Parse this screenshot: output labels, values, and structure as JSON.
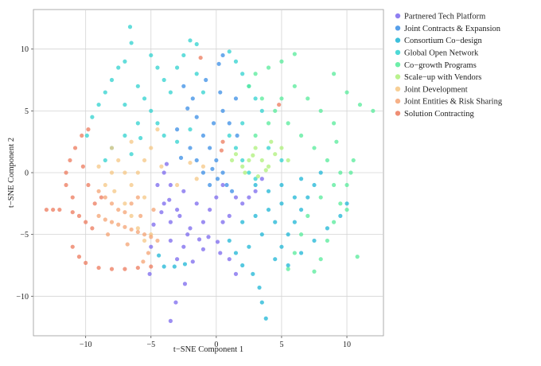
{
  "chart_data": {
    "type": "scatter",
    "title": "",
    "xlabel": "t−SNE Component 1",
    "ylabel": "t−SNE Component 2",
    "xlim": [
      -14,
      12.8
    ],
    "ylim": [
      -13.2,
      13.2
    ],
    "xticks": [
      -10,
      -5,
      0,
      5,
      10
    ],
    "yticks": [
      -10,
      -5,
      0,
      5,
      10
    ],
    "xtick_labels": [
      "−10",
      "−5",
      "0",
      "5",
      "10"
    ],
    "ytick_labels": [
      "−10",
      "−5",
      "0",
      "5",
      "10"
    ],
    "grid": true,
    "legend_position": "right-top",
    "series": [
      {
        "name": "Partnered Tech Platform",
        "color": "#7b68ee",
        "points": [
          [
            -5,
            -6
          ],
          [
            -3.5,
            -12
          ],
          [
            -3.1,
            -10.5
          ],
          [
            -2.4,
            -9
          ],
          [
            -1.8,
            -7.2
          ],
          [
            -1.3,
            -5.4
          ],
          [
            -0.6,
            -5.2
          ],
          [
            0.1,
            -5.6
          ],
          [
            -3.5,
            -4
          ],
          [
            -3,
            -3
          ],
          [
            -2.5,
            -1.5
          ],
          [
            -4,
            -2.5
          ],
          [
            -4.8,
            -4.2
          ],
          [
            -5.1,
            -8.2
          ],
          [
            -3.5,
            -1
          ],
          [
            -2.8,
            -3.5
          ],
          [
            -2,
            -4.5
          ],
          [
            -1.5,
            -2.5
          ],
          [
            -1,
            -4
          ],
          [
            -0.5,
            -3
          ],
          [
            0,
            -2
          ],
          [
            0.5,
            -1
          ],
          [
            0.5,
            -4
          ],
          [
            1,
            -3.5
          ],
          [
            1.5,
            -2
          ],
          [
            2,
            -2.5
          ],
          [
            2.5,
            -2
          ],
          [
            3,
            -1.5
          ],
          [
            3.5,
            -0.5
          ],
          [
            -4.5,
            -1
          ],
          [
            -4,
            0
          ],
          [
            -3.8,
            0.7
          ],
          [
            -3.5,
            -5.5
          ],
          [
            -2.5,
            -6
          ],
          [
            -1,
            -6.2
          ],
          [
            1,
            -7
          ],
          [
            1.5,
            -8.2
          ],
          [
            -3,
            -7
          ],
          [
            -2.2,
            -5
          ],
          [
            0.3,
            -6.5
          ],
          [
            -4.2,
            -3.2
          ],
          [
            -3.6,
            -2.2
          ]
        ]
      },
      {
        "name": "Joint Contracts & Expansion",
        "color": "#3a8ee6",
        "points": [
          [
            -2.2,
            5.2
          ],
          [
            -1.5,
            4.5
          ],
          [
            -1,
            3
          ],
          [
            -0.5,
            2
          ],
          [
            0,
            1
          ],
          [
            0.5,
            0
          ],
          [
            0.8,
            -1
          ],
          [
            1.2,
            -1.5
          ],
          [
            -0.2,
            4
          ],
          [
            0.5,
            5
          ],
          [
            1.5,
            6
          ],
          [
            0.2,
            8.8
          ],
          [
            0.5,
            9.5
          ],
          [
            -3,
            3.5
          ],
          [
            -2,
            2
          ],
          [
            -1.5,
            1
          ],
          [
            -1,
            0
          ],
          [
            -0.5,
            -1
          ],
          [
            0.1,
            -0.5
          ],
          [
            -1.8,
            6
          ],
          [
            -2.5,
            7
          ],
          [
            -0.8,
            7.5
          ],
          [
            0.3,
            6.5
          ],
          [
            1,
            4
          ],
          [
            1.6,
            3
          ],
          [
            -0.3,
            0.3
          ],
          [
            -2.7,
            1.2
          ]
        ]
      },
      {
        "name": "Consortium Co−design",
        "color": "#1cb5d6",
        "points": [
          [
            3.8,
            -11.8
          ],
          [
            3.5,
            -10.5
          ],
          [
            3.3,
            -9.3
          ],
          [
            2.8,
            -8.2
          ],
          [
            2,
            -7.5
          ],
          [
            1.5,
            -6.5
          ],
          [
            1,
            -5.5
          ],
          [
            4.5,
            -7
          ],
          [
            5,
            -6
          ],
          [
            5.5,
            -5
          ],
          [
            6,
            -4
          ],
          [
            6.5,
            -3
          ],
          [
            7,
            -2
          ],
          [
            7.5,
            -1
          ],
          [
            8,
            0
          ],
          [
            2,
            -4
          ],
          [
            3,
            -3.5
          ],
          [
            4,
            -3
          ],
          [
            5,
            -2.5
          ],
          [
            6,
            -2
          ],
          [
            2.5,
            -6
          ],
          [
            3.5,
            -5
          ],
          [
            4.5,
            -4
          ],
          [
            5.5,
            -7.5
          ],
          [
            6.5,
            -6.5
          ],
          [
            7.5,
            -5.5
          ],
          [
            8.5,
            -4.5
          ],
          [
            9.5,
            -3.5
          ],
          [
            10,
            -2.5
          ],
          [
            -4,
            -7.6
          ],
          [
            -3.2,
            -7.6
          ],
          [
            -2.4,
            -7.4
          ],
          [
            -4.4,
            -6.7
          ],
          [
            3,
            -1
          ],
          [
            4,
            -1.5
          ],
          [
            5,
            -1
          ],
          [
            6.5,
            -0.5
          ]
        ]
      },
      {
        "name": "Global Open Network",
        "color": "#2fd2cf",
        "points": [
          [
            -6.6,
            11.8
          ],
          [
            -6.5,
            10.5
          ],
          [
            -2,
            10.7
          ],
          [
            -1.5,
            10.4
          ],
          [
            -7,
            9
          ],
          [
            -7.5,
            8.5
          ],
          [
            -8,
            7.5
          ],
          [
            -8.5,
            6.5
          ],
          [
            -9,
            5.5
          ],
          [
            -9.5,
            4.5
          ],
          [
            -9.9,
            3
          ],
          [
            -6,
            7
          ],
          [
            -5.5,
            6
          ],
          [
            -5,
            5
          ],
          [
            -4.5,
            4
          ],
          [
            -4,
            3
          ],
          [
            -5,
            9.5
          ],
          [
            -4.5,
            8.5
          ],
          [
            -4,
            7.5
          ],
          [
            -3.5,
            6.5
          ],
          [
            -6,
            4
          ],
          [
            -7,
            3
          ],
          [
            -8,
            2
          ],
          [
            -8.5,
            1
          ],
          [
            -7,
            5.5
          ],
          [
            -3,
            8.5
          ],
          [
            -2.5,
            9.5
          ],
          [
            1,
            9.8
          ],
          [
            1.5,
            9
          ],
          [
            2,
            8
          ],
          [
            2.5,
            7
          ],
          [
            3,
            6
          ],
          [
            3.5,
            5
          ],
          [
            -1.5,
            8
          ],
          [
            -1,
            6.5
          ],
          [
            1,
            3
          ],
          [
            1.5,
            2
          ],
          [
            2,
            1
          ],
          [
            2.5,
            0
          ],
          [
            3,
            -0.5
          ],
          [
            2,
            4
          ],
          [
            4,
            2
          ],
          [
            5,
            1
          ],
          [
            -3,
            2.5
          ],
          [
            -2,
            3.5
          ],
          [
            -6.5,
            1.5
          ],
          [
            -5.8,
            2.8
          ]
        ]
      },
      {
        "name": "Co−growth Programs",
        "color": "#55eb9a",
        "points": [
          [
            9,
            8
          ],
          [
            10,
            6.5
          ],
          [
            11,
            5.5
          ],
          [
            12,
            5
          ],
          [
            10.5,
            1
          ],
          [
            10.3,
            0
          ],
          [
            10,
            -1
          ],
          [
            9.5,
            -2.5
          ],
          [
            9,
            -4
          ],
          [
            8.5,
            -5.5
          ],
          [
            8,
            -7
          ],
          [
            7.5,
            -8
          ],
          [
            10.8,
            -6.8
          ],
          [
            6,
            9.6
          ],
          [
            5,
            9
          ],
          [
            4,
            8.5
          ],
          [
            3,
            8
          ],
          [
            2.5,
            7
          ],
          [
            3.5,
            6
          ],
          [
            4.5,
            5
          ],
          [
            5.5,
            4
          ],
          [
            6.5,
            3
          ],
          [
            7.5,
            2
          ],
          [
            8.5,
            1
          ],
          [
            9.5,
            0
          ],
          [
            7,
            6
          ],
          [
            8,
            5
          ],
          [
            9,
            4
          ],
          [
            6,
            7
          ],
          [
            5,
            6
          ],
          [
            4,
            4
          ],
          [
            3,
            3
          ],
          [
            7,
            -3.5
          ],
          [
            6.5,
            -5
          ],
          [
            6,
            -6.5
          ],
          [
            5.5,
            -7.8
          ],
          [
            8,
            -2
          ],
          [
            9,
            -1
          ],
          [
            10,
            -3
          ],
          [
            9.2,
            2.5
          ]
        ]
      },
      {
        "name": "Scale−up with Vendors",
        "color": "#aef07a",
        "points": [
          [
            1.5,
            1.5
          ],
          [
            2,
            0.5
          ],
          [
            2.5,
            1
          ],
          [
            3,
            2
          ],
          [
            3.5,
            1
          ],
          [
            4,
            0.5
          ],
          [
            4.5,
            1.5
          ],
          [
            5,
            2
          ],
          [
            2.2,
            0
          ],
          [
            3.2,
            -0.3
          ],
          [
            1.2,
            1
          ],
          [
            4.2,
            2.5
          ],
          [
            5.5,
            1
          ],
          [
            2.8,
            1.4
          ],
          [
            3.8,
            0.2
          ]
        ]
      },
      {
        "name": "Joint Development",
        "color": "#f6c784",
        "points": [
          [
            -8.5,
            -1
          ],
          [
            -8,
            0
          ],
          [
            -7.5,
            1
          ],
          [
            -7,
            0
          ],
          [
            -6.5,
            -1
          ],
          [
            -6,
            0
          ],
          [
            -5.5,
            1
          ],
          [
            -5,
            2
          ],
          [
            -4.5,
            3.5
          ],
          [
            -7,
            -2.5
          ],
          [
            -6.5,
            -3.5
          ],
          [
            -6,
            -4.5
          ],
          [
            -5.5,
            -5.5
          ],
          [
            -5,
            -5
          ],
          [
            -8,
            2
          ],
          [
            -9,
            0.5
          ],
          [
            -6.5,
            2.5
          ],
          [
            -4.2,
            0.5
          ],
          [
            -3,
            -1
          ],
          [
            -1.5,
            -0.5
          ],
          [
            -1,
            0.5
          ],
          [
            -2,
            0.8
          ],
          [
            -5.5,
            -2
          ],
          [
            -7.8,
            -1.5
          ]
        ]
      },
      {
        "name": "Joint Entities & Risk Sharing",
        "color": "#f4a373",
        "points": [
          [
            -9,
            -3.5
          ],
          [
            -8.5,
            -3.8
          ],
          [
            -8,
            -4
          ],
          [
            -7.5,
            -4.2
          ],
          [
            -7,
            -4.4
          ],
          [
            -6.5,
            -4.6
          ],
          [
            -6,
            -4.8
          ],
          [
            -5.5,
            -5
          ],
          [
            -5,
            -5.2
          ],
          [
            -9,
            -1.5
          ],
          [
            -8.5,
            -2
          ],
          [
            -8,
            -2.5
          ],
          [
            -7.5,
            -3
          ],
          [
            -7,
            -3.2
          ],
          [
            -6.5,
            -2.5
          ],
          [
            -6,
            -2
          ],
          [
            -5.8,
            -3.5
          ],
          [
            -5.2,
            -6.5
          ],
          [
            -4.5,
            -5.5
          ],
          [
            -4.8,
            -3
          ],
          [
            -8.3,
            -5
          ],
          [
            -6.8,
            -5.8
          ],
          [
            -5.6,
            -7.2
          ]
        ]
      },
      {
        "name": "Solution Contracting",
        "color": "#ec7a5c",
        "points": [
          [
            -11,
            -2
          ],
          [
            -11.5,
            -1
          ],
          [
            -11.5,
            0
          ],
          [
            -11.2,
            1
          ],
          [
            -10.8,
            2
          ],
          [
            -10.3,
            3
          ],
          [
            -9.8,
            3.5
          ],
          [
            -12,
            -3
          ],
          [
            -12.5,
            -3
          ],
          [
            -13,
            -3
          ],
          [
            -11,
            -3.2
          ],
          [
            -10.5,
            -3.5
          ],
          [
            -10,
            -4
          ],
          [
            -9.5,
            -4.5
          ],
          [
            -11,
            -6
          ],
          [
            -10.5,
            -6.8
          ],
          [
            -10,
            -7.3
          ],
          [
            -9,
            -7.7
          ],
          [
            -8,
            -7.8
          ],
          [
            -7,
            -7.8
          ],
          [
            -6,
            -7.7
          ],
          [
            -5,
            -7.6
          ],
          [
            -8.8,
            -2
          ],
          [
            -9.8,
            -1
          ],
          [
            0.5,
            2.5
          ],
          [
            0.4,
            1.8
          ],
          [
            4.8,
            5.5
          ],
          [
            -1.2,
            9.3
          ],
          [
            -10.2,
            0.5
          ],
          [
            -9.3,
            -2.5
          ]
        ]
      }
    ]
  }
}
